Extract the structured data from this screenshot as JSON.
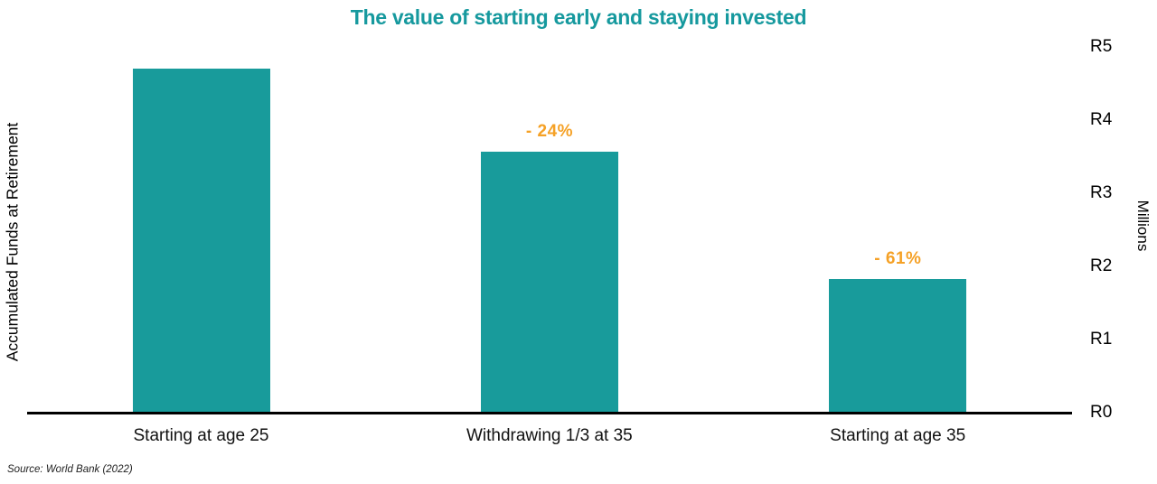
{
  "chart_data": {
    "type": "bar",
    "title": "The value of starting early and staying invested",
    "categories": [
      "Starting at age 25",
      "Withdrawing 1/3 at 35",
      "Starting at age 35"
    ],
    "values": [
      4.7,
      3.57,
      1.83
    ],
    "annotations": [
      "",
      "- 24%",
      "- 61%"
    ],
    "left_axis_label": "Accumulated Funds at Retirement",
    "right_axis_label": "Millions",
    "y_ticks": [
      "R0",
      "R1",
      "R2",
      "R3",
      "R4",
      "R5"
    ],
    "ylim": [
      0,
      5
    ],
    "grid": false,
    "legend": false,
    "bar_color": "#189B9B",
    "title_color": "#16999E",
    "annotation_color": "#F5A126",
    "source": "Source: World Bank (2022)"
  }
}
